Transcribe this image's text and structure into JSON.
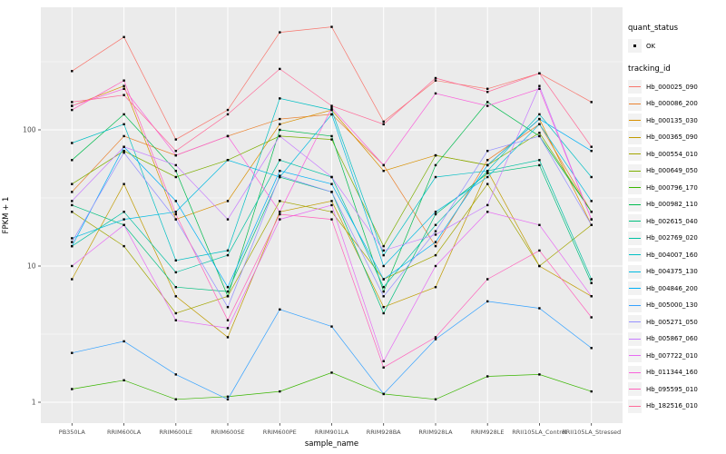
{
  "chart_data": {
    "type": "line",
    "title": "",
    "xlabel": "sample_name",
    "ylabel": "FPKM + 1",
    "y_scale": "log10",
    "y_ticks": [
      1,
      10,
      100
    ],
    "y_minor_ticks": [
      3.1623,
      31.623,
      316.23
    ],
    "ylim": [
      0.7,
      800
    ],
    "panel_bg": "#EBEBEB",
    "grid_color": "#FFFFFF",
    "tick_color": "#333333",
    "tick_label_color": "#4D4D4D",
    "point_color": "#000000",
    "x_categories": [
      "PB350LA",
      "RRIM600LA",
      "RRIM600LE",
      "RRIM600SE",
      "RRIM600PE",
      "RRIM901LA",
      "RRIM928BA",
      "RRIM928LA",
      "RRIM928LE",
      "RRII105LA_Control",
      "RRII105LA_Stressed"
    ],
    "legend": {
      "quant_status_title": "quant_status",
      "quant_status_items": [
        {
          "label": "OK",
          "shape": "point",
          "color": "#000000"
        }
      ],
      "tracking_title": "tracking_id"
    },
    "series": [
      {
        "name": "Hb_000025_090",
        "color": "#F8766D",
        "values": [
          270,
          480,
          85,
          140,
          520,
          570,
          115,
          230,
          200,
          260,
          160
        ]
      },
      {
        "name": "Hb_000086_200",
        "color": "#EA8331",
        "values": [
          35,
          90,
          65,
          90,
          120,
          130,
          55,
          14,
          60,
          110,
          25
        ]
      },
      {
        "name": "Hb_000135_030",
        "color": "#D89000",
        "values": [
          150,
          210,
          22,
          30,
          110,
          140,
          50,
          65,
          55,
          120,
          20
        ]
      },
      {
        "name": "Hb_000365_090",
        "color": "#C09B00",
        "values": [
          8,
          40,
          6,
          3,
          25,
          30,
          5,
          7,
          50,
          10,
          6
        ]
      },
      {
        "name": "Hb_000554_010",
        "color": "#A3A500",
        "values": [
          25,
          14,
          4.5,
          6,
          30,
          25,
          8,
          12,
          40,
          10,
          20
        ]
      },
      {
        "name": "Hb_000649_050",
        "color": "#7CAE00",
        "values": [
          40,
          70,
          45,
          60,
          90,
          85,
          14,
          65,
          55,
          95,
          25
        ]
      },
      {
        "name": "Hb_000796_170",
        "color": "#39B600",
        "values": [
          1.25,
          1.45,
          1.05,
          1.1,
          1.2,
          1.65,
          1.15,
          1.05,
          1.55,
          1.6,
          1.2
        ]
      },
      {
        "name": "Hb_000982_110",
        "color": "#00BB4E",
        "values": [
          60,
          130,
          50,
          6,
          100,
          90,
          6.5,
          55,
          160,
          90,
          25
        ]
      },
      {
        "name": "Hb_002615_040",
        "color": "#00BF7D",
        "values": [
          28,
          20,
          7,
          6.5,
          45,
          35,
          4.5,
          24,
          48,
          55,
          7.5
        ]
      },
      {
        "name": "Hb_002769_020",
        "color": "#00C1A3",
        "values": [
          14,
          25,
          9,
          12,
          60,
          45,
          7,
          20,
          50,
          60,
          8
        ]
      },
      {
        "name": "Hb_004007_160",
        "color": "#00BFC4",
        "values": [
          80,
          110,
          11,
          13,
          170,
          140,
          12,
          45,
          50,
          130,
          45
        ]
      },
      {
        "name": "Hb_004375_130",
        "color": "#00BAE0",
        "values": [
          16,
          22,
          25,
          60,
          45,
          130,
          10,
          25,
          45,
          110,
          30
        ]
      },
      {
        "name": "Hb_004846_200",
        "color": "#00B0F6",
        "values": [
          14,
          75,
          30,
          7,
          50,
          40,
          8,
          15,
          55,
          120,
          70
        ]
      },
      {
        "name": "Hb_005000_130",
        "color": "#35A2FF",
        "values": [
          2.3,
          2.8,
          1.6,
          1.05,
          4.8,
          3.6,
          1.15,
          2.9,
          5.5,
          4.9,
          2.5
        ]
      },
      {
        "name": "Hb_005271_050",
        "color": "#9590FF",
        "values": [
          15,
          68,
          22,
          5,
          46,
          35,
          6,
          18,
          70,
          90,
          20
        ]
      },
      {
        "name": "Hb_005867_060",
        "color": "#C77CFF",
        "values": [
          30,
          75,
          55,
          22,
          90,
          45,
          13,
          17,
          28,
          210,
          22
        ]
      },
      {
        "name": "Hb_007722_010",
        "color": "#E76BF3",
        "values": [
          10,
          20,
          4,
          3.5,
          22,
          28,
          2,
          10,
          25,
          20,
          6
        ]
      },
      {
        "name": "Hb_011344_160",
        "color": "#FA62DB",
        "values": [
          150,
          200,
          65,
          90,
          25,
          145,
          55,
          185,
          150,
          200,
          22
        ]
      },
      {
        "name": "Hb_095595_010",
        "color": "#FF62BC",
        "values": [
          140,
          230,
          24,
          4,
          24,
          22,
          1.8,
          3,
          8,
          13,
          4.2
        ]
      },
      {
        "name": "Hb_182516_010",
        "color": "#FF6A98",
        "values": [
          160,
          180,
          70,
          130,
          280,
          150,
          110,
          240,
          190,
          260,
          75
        ]
      }
    ]
  }
}
